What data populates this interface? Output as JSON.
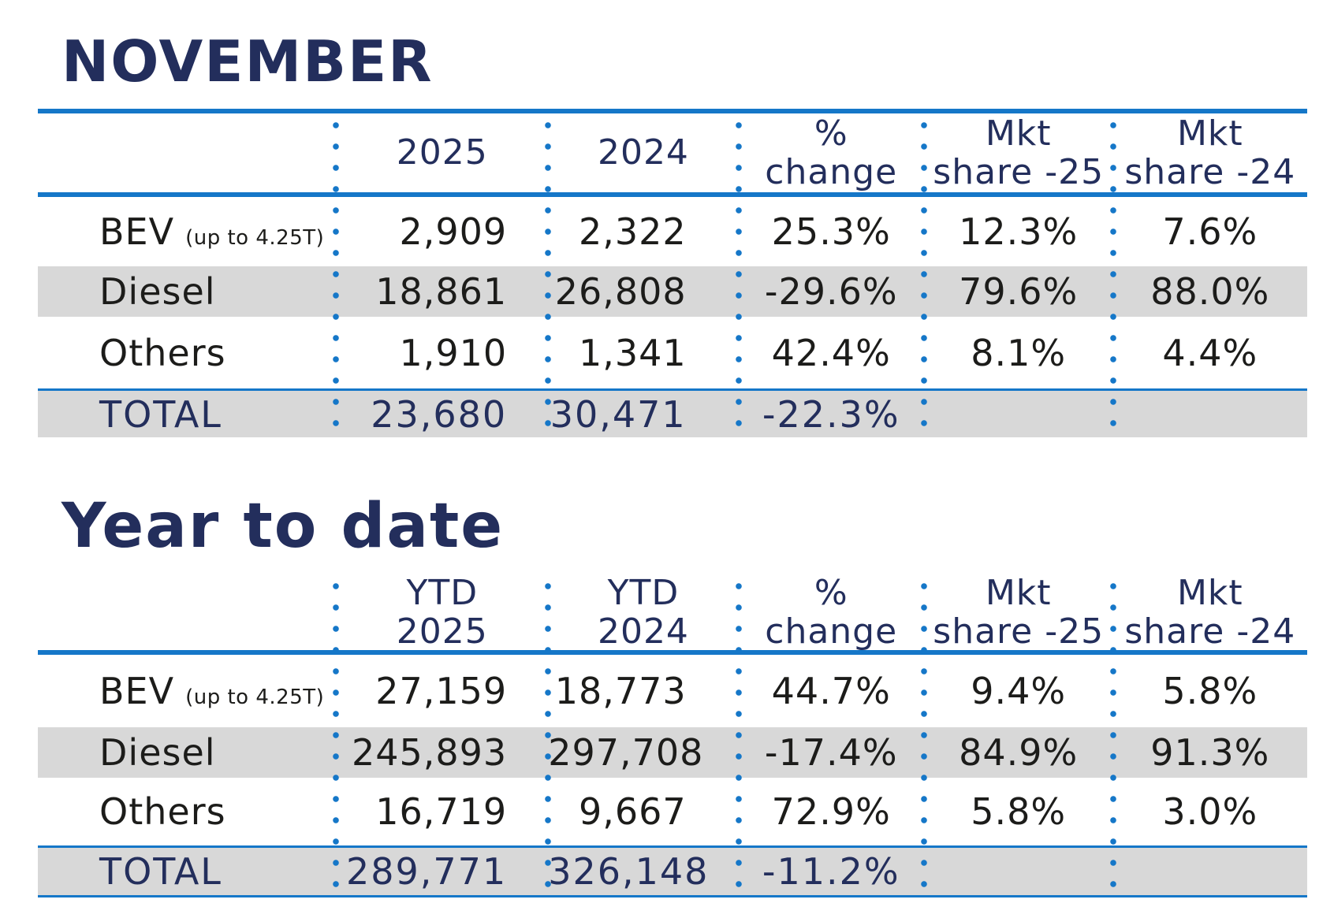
{
  "colors": {
    "navy": "#232e5c",
    "blue": "#1577c8",
    "row_gray": "#d8d8d8",
    "text": "#1c1c1a"
  },
  "november": {
    "title": "NOVEMBER",
    "columns": {
      "c0": "",
      "c1": "2025",
      "c2": "2024",
      "c3": "%\nchange",
      "c4": "Mkt\nshare -25",
      "c5": "Mkt\nshare -24"
    },
    "rows": [
      {
        "label": "BEV",
        "sub": "(up to 4.25T)",
        "v1": "2,909",
        "v2": "2,322",
        "change": "25.3%",
        "share25": "12.3%",
        "share24": "7.6%"
      },
      {
        "label": "Diesel",
        "sub": "",
        "v1": "18,861",
        "v2": "26,808",
        "change": "-29.6%",
        "share25": "79.6%",
        "share24": "88.0%"
      },
      {
        "label": "Others",
        "sub": "",
        "v1": "1,910",
        "v2": "1,341",
        "change": "42.4%",
        "share25": "8.1%",
        "share24": "4.4%"
      }
    ],
    "total": {
      "label": "TOTAL",
      "v1": "23,680",
      "v2": "30,471",
      "change": "-22.3%",
      "share25": "",
      "share24": ""
    }
  },
  "ytd": {
    "title": "Year to date",
    "columns": {
      "c0": "",
      "c1": "YTD\n2025",
      "c2": "YTD\n2024",
      "c3": "%\nchange",
      "c4": "Mkt\nshare -25",
      "c5": "Mkt\nshare -24"
    },
    "rows": [
      {
        "label": "BEV",
        "sub": "(up to 4.25T)",
        "v1": "27,159",
        "v2": "18,773",
        "change": "44.7%",
        "share25": "9.4%",
        "share24": "5.8%"
      },
      {
        "label": "Diesel",
        "sub": "",
        "v1": "245,893",
        "v2": "297,708",
        "change": "-17.4%",
        "share25": "84.9%",
        "share24": "91.3%"
      },
      {
        "label": "Others",
        "sub": "",
        "v1": "16,719",
        "v2": "9,667",
        "change": "72.9%",
        "share25": "5.8%",
        "share24": "3.0%"
      }
    ],
    "total": {
      "label": "TOTAL",
      "v1": "289,771",
      "v2": "326,148",
      "change": "-11.2%",
      "share25": "",
      "share24": ""
    }
  },
  "chart_data": [
    {
      "type": "table",
      "title": "NOVEMBER",
      "columns": [
        "",
        "2025",
        "2024",
        "% change",
        "Mkt share -25",
        "Mkt share -24"
      ],
      "rows": [
        [
          "BEV (up to 4.25T)",
          2909,
          2322,
          "25.3%",
          "12.3%",
          "7.6%"
        ],
        [
          "Diesel",
          18861,
          26808,
          "-29.6%",
          "79.6%",
          "88.0%"
        ],
        [
          "Others",
          1910,
          1341,
          "42.4%",
          "8.1%",
          "4.4%"
        ],
        [
          "TOTAL",
          23680,
          30471,
          "-22.3%",
          "",
          ""
        ]
      ]
    },
    {
      "type": "table",
      "title": "Year to date",
      "columns": [
        "",
        "YTD 2025",
        "YTD 2024",
        "% change",
        "Mkt share -25",
        "Mkt share -24"
      ],
      "rows": [
        [
          "BEV (up to 4.25T)",
          27159,
          18773,
          "44.7%",
          "9.4%",
          "5.8%"
        ],
        [
          "Diesel",
          245893,
          297708,
          "-17.4%",
          "84.9%",
          "91.3%"
        ],
        [
          "Others",
          16719,
          9667,
          "72.9%",
          "5.8%",
          "3.0%"
        ],
        [
          "TOTAL",
          289771,
          326148,
          "-11.2%",
          "",
          ""
        ]
      ]
    }
  ]
}
